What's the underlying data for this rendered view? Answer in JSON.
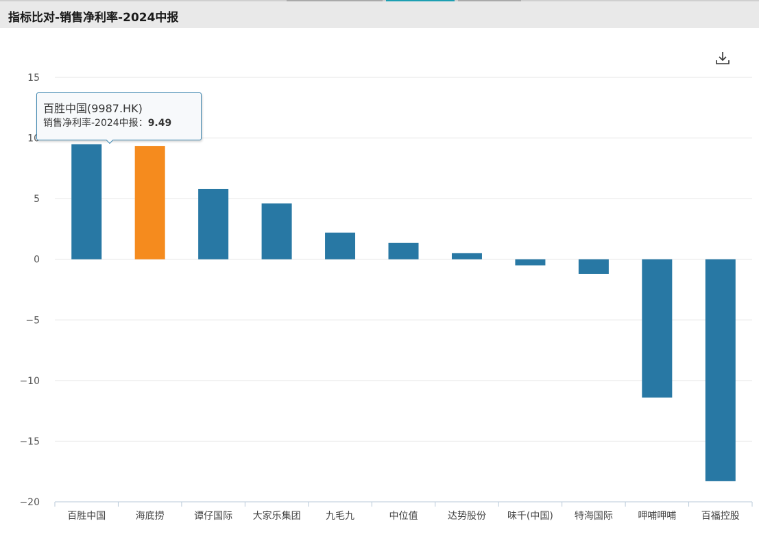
{
  "header": {
    "title": "指标比对-销售净利率-2024中报"
  },
  "toolbar": {
    "download_icon": "download-icon"
  },
  "colors": {
    "bar": "#2878a4",
    "highlight": "#f58b1e",
    "grid": "#e6e6e6",
    "axis": "#b8c9d9",
    "tick_text": "#555555"
  },
  "tooltip": {
    "name": "百胜中国(9987.HK)",
    "metric": "销售净利率-2024中报",
    "separator": "：",
    "value": "9.49"
  },
  "chart_data": {
    "type": "bar",
    "title": "",
    "xlabel": "",
    "ylabel": "",
    "ylim": [
      -20,
      15
    ],
    "yticks": [
      15,
      10,
      5,
      0,
      -5,
      -10,
      -15,
      -20
    ],
    "grid": true,
    "categories": [
      "百胜中国",
      "海底捞",
      "谭仔国际",
      "大家乐集团",
      "九毛九",
      "中位值",
      "达势股份",
      "味千(中国)",
      "特海国际",
      "呷哺呷哺",
      "百福控股"
    ],
    "values": [
      9.49,
      9.35,
      5.8,
      4.6,
      2.2,
      1.35,
      0.5,
      -0.5,
      -1.2,
      -11.4,
      -18.3
    ],
    "highlight_index": 1
  }
}
